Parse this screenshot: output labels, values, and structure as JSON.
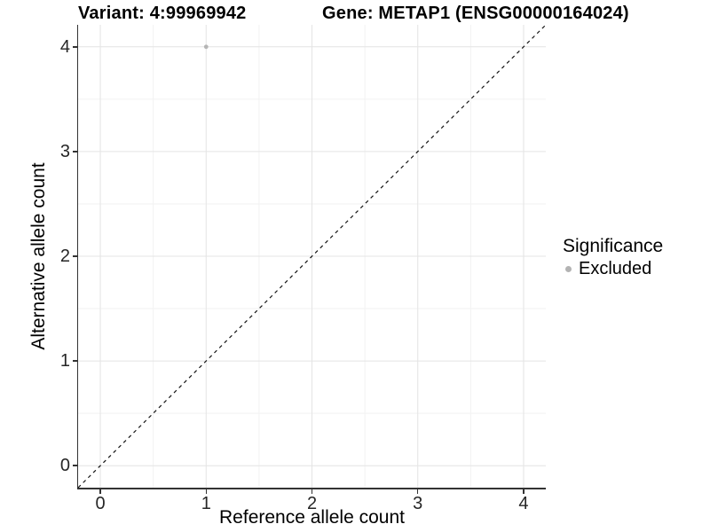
{
  "titles": {
    "variant": "Variant: 4:99969942",
    "gene": "Gene: METAP1 (ENSG00000164024)"
  },
  "legend": {
    "title": "Significance",
    "items": [
      {
        "label": "Excluded",
        "color": "#b3b3b3",
        "marker": "circle"
      }
    ]
  },
  "colors": {
    "point": "#b5b5b5",
    "grid_major": "#e4e4e4",
    "grid_minor": "#f2f2f2",
    "axis": "#333333",
    "dashed_line": "#141414",
    "text": "#1a1a1a",
    "background": "#ffffff"
  },
  "chart_data": {
    "type": "scatter",
    "title": "Variant: 4:99969942   Gene: METAP1 (ENSG00000164024)",
    "xlabel": "Reference allele count",
    "ylabel": "Alternative allele count",
    "xlim": [
      -0.21,
      4.21
    ],
    "ylim": [
      -0.21,
      4.21
    ],
    "x_ticks": [
      0,
      1,
      2,
      3,
      4
    ],
    "y_ticks": [
      0,
      1,
      2,
      3,
      4
    ],
    "x_minor_ticks": [
      0.5,
      1.5,
      2.5,
      3.5
    ],
    "y_minor_ticks": [
      0.5,
      1.5,
      2.5,
      3.5
    ],
    "grid": true,
    "legend_position": "right",
    "legend_title": "Significance",
    "series": [
      {
        "name": "Excluded",
        "color": "#b5b5b5",
        "points": [
          {
            "x": 1,
            "y": 4
          }
        ]
      }
    ],
    "reference_line": {
      "slope": 1,
      "intercept": 0,
      "style": "dashed",
      "color": "#141414"
    }
  }
}
